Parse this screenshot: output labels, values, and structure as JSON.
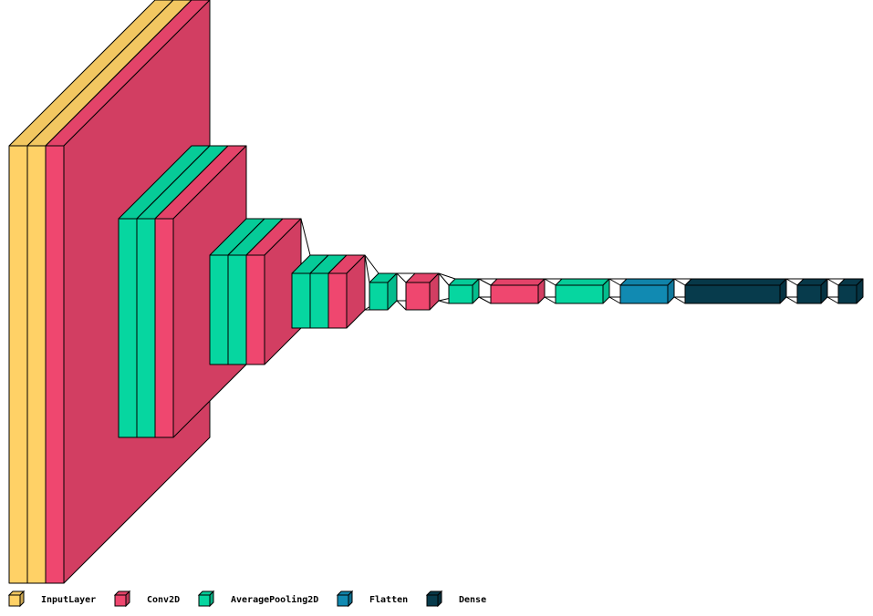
{
  "legend": [
    {
      "label": "InputLayer",
      "color": "#FFD166"
    },
    {
      "label": "Conv2D",
      "color": "#EF476F"
    },
    {
      "label": "AveragePooling2D",
      "color": "#06D6A0"
    },
    {
      "label": "Flatten",
      "color": "#118AB2"
    },
    {
      "label": "Dense",
      "color": "#073B4C"
    }
  ]
}
